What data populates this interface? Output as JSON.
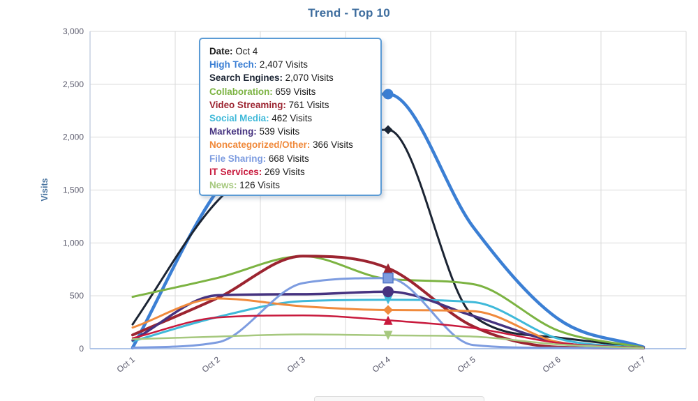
{
  "page": {
    "background": "#ffffff"
  },
  "chart": {
    "title": "Trend - Top 10",
    "title_color": "#3e6d9e"
  },
  "axes_style": {
    "tick_label_color": "#5c5c6e",
    "grid_color": "#d9d9d9",
    "x_axis_line_color": "#aec4e8",
    "y_axis_line_color": "#c6d0e2",
    "y_axis_title_color": "#44709d"
  },
  "chart_data": {
    "type": "line",
    "title": "Trend - Top 10",
    "xlabel": "",
    "ylabel": "Visits",
    "ylim": [
      0,
      3000
    ],
    "y_tick_interval": 500,
    "y_tick_labels": [
      "0",
      "500",
      "1,000",
      "1,500",
      "2,000",
      "2,500",
      "3,000"
    ],
    "x": [
      "Oct 1",
      "Oct 2",
      "Oct 3",
      "Oct 4",
      "Oct 5",
      "Oct 6",
      "Oct 7"
    ],
    "grid": true,
    "legend_position": "bottom (cut off)",
    "hovered_x": "Oct 4",
    "series": [
      {
        "name": "High Tech",
        "color": "#3b7fd4",
        "line_width": 4.5,
        "marker": "circle",
        "marker_size": 15,
        "values": [
          10,
          1500,
          2250,
          2407,
          1150,
          280,
          15
        ]
      },
      {
        "name": "Search Engines",
        "color": "#1b2433",
        "line_width": 3,
        "marker": "diamond",
        "marker_size": 13,
        "values": [
          230,
          1400,
          1950,
          2070,
          310,
          105,
          8
        ]
      },
      {
        "name": "Collaboration",
        "color": "#7cb342",
        "line_width": 3,
        "marker": "square",
        "marker_size": 12,
        "values": [
          490,
          670,
          875,
          659,
          610,
          170,
          10
        ]
      },
      {
        "name": "Video Streaming",
        "color": "#9c2430",
        "line_width": 4,
        "marker": "triangle-up",
        "marker_size": 14,
        "values": [
          130,
          480,
          875,
          761,
          210,
          15,
          5
        ]
      },
      {
        "name": "Social Media",
        "color": "#3fb9d9",
        "line_width": 3,
        "marker": "triangle-down",
        "marker_size": 13,
        "values": [
          70,
          300,
          450,
          462,
          440,
          95,
          5
        ]
      },
      {
        "name": "Marketing",
        "color": "#463380",
        "line_width": 3.5,
        "marker": "circle",
        "marker_size": 16,
        "values": [
          80,
          505,
          515,
          539,
          310,
          60,
          5
        ]
      },
      {
        "name": "Noncategorized/Other",
        "color": "#f08a3c",
        "line_width": 3,
        "marker": "diamond",
        "marker_size": 14,
        "values": [
          200,
          475,
          400,
          366,
          355,
          60,
          5
        ]
      },
      {
        "name": "File Sharing",
        "color": "#7d9ce0",
        "line_width": 3,
        "marker": "square",
        "marker_size": 14,
        "marker_stroke": "#5478c8",
        "values": [
          10,
          60,
          620,
          668,
          35,
          8,
          3
        ]
      },
      {
        "name": "IT Services",
        "color": "#c8193c",
        "line_width": 2.5,
        "marker": "triangle-up",
        "marker_size": 13,
        "values": [
          100,
          295,
          315,
          269,
          195,
          55,
          5
        ]
      },
      {
        "name": "News",
        "color": "#a6c87e",
        "line_width": 2.5,
        "marker": "triangle-down",
        "marker_size": 13,
        "values": [
          90,
          115,
          135,
          126,
          115,
          40,
          5
        ]
      }
    ]
  },
  "tooltip": {
    "rows": [
      {
        "label": "Date",
        "value": "Oct 4",
        "color": "#1a1a1a"
      },
      {
        "label": "High Tech",
        "value": "2,407 Visits",
        "color": "#3b7fd4"
      },
      {
        "label": "Search Engines",
        "value": "2,070 Visits",
        "color": "#1b2433"
      },
      {
        "label": "Collaboration",
        "value": "659 Visits",
        "color": "#7cb342"
      },
      {
        "label": "Video Streaming",
        "value": "761 Visits",
        "color": "#9c2430"
      },
      {
        "label": "Social Media",
        "value": "462 Visits",
        "color": "#3fb9d9"
      },
      {
        "label": "Marketing",
        "value": "539 Visits",
        "color": "#463380"
      },
      {
        "label": "Noncategorized/Other",
        "value": "366 Visits",
        "color": "#f08a3c"
      },
      {
        "label": "File Sharing",
        "value": "668 Visits",
        "color": "#7d9ce0"
      },
      {
        "label": "IT Services",
        "value": "269 Visits",
        "color": "#c8193c"
      },
      {
        "label": "News",
        "value": "126 Visits",
        "color": "#a6c87e"
      }
    ]
  }
}
